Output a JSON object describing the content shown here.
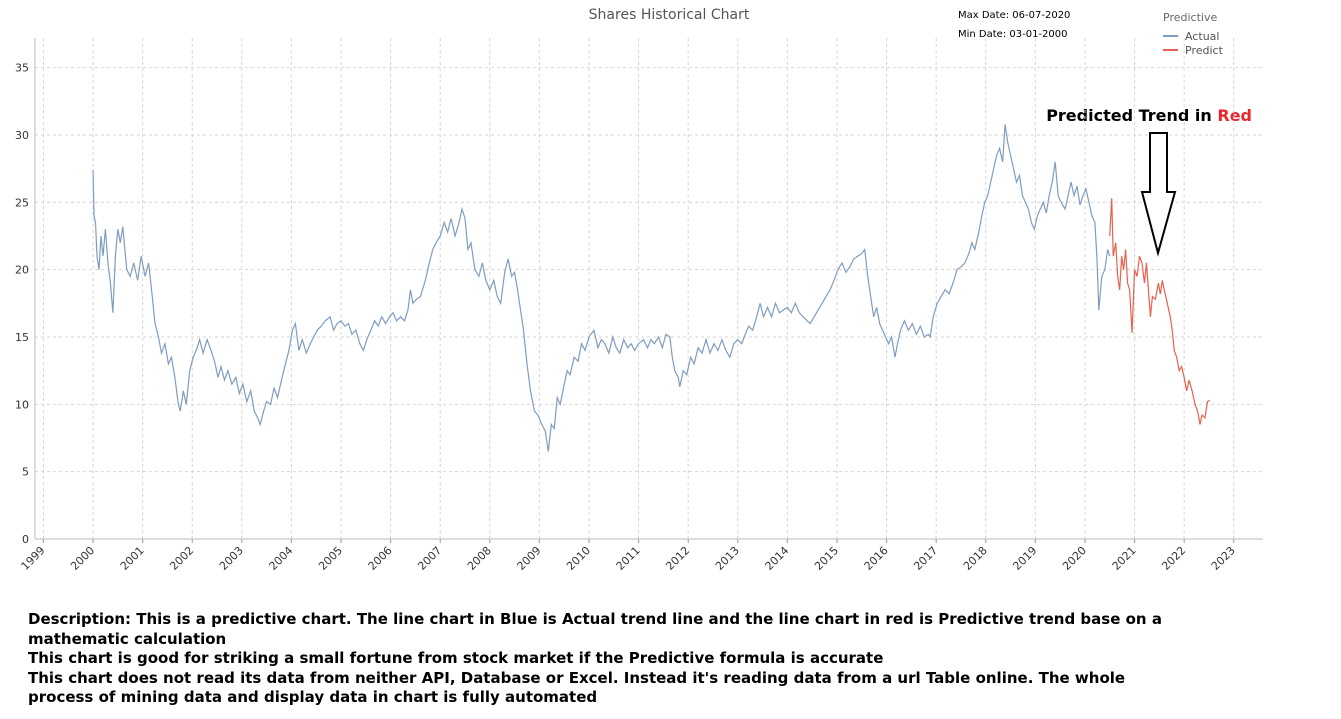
{
  "chart_data": {
    "type": "line",
    "title": "Shares Historical Chart",
    "max_date": "Max Date: 06-07-2020",
    "min_date": "Min Date: 03-01-2000",
    "legend_title": "Predictive",
    "annotation": {
      "text": "Predicted Trend in",
      "highlight": "Red"
    },
    "xlim": [
      1998.83,
      2023.59
    ],
    "xticks": [
      1999,
      2000,
      2001,
      2002,
      2003,
      2004,
      2005,
      2006,
      2007,
      2008,
      2009,
      2010,
      2011,
      2012,
      2013,
      2014,
      2015,
      2016,
      2017,
      2018,
      2019,
      2020,
      2021,
      2022,
      2023
    ],
    "ylim": [
      0,
      37.2
    ],
    "yticks": [
      0,
      5,
      10,
      15,
      20,
      25,
      30,
      35
    ],
    "grid": true,
    "series": [
      {
        "name": "Actual",
        "color": "#7f9dbf",
        "x": [
          2000.0,
          2000.02,
          2000.05,
          2000.08,
          2000.12,
          2000.16,
          2000.2,
          2000.25,
          2000.3,
          2000.35,
          2000.4,
          2000.45,
          2000.5,
          2000.55,
          2000.6,
          2000.68,
          2000.75,
          2000.82,
          2000.9,
          2000.97,
          2001.05,
          2001.12,
          2001.18,
          2001.25,
          2001.32,
          2001.38,
          2001.45,
          2001.52,
          2001.58,
          2001.65,
          2001.72,
          2001.76,
          2001.82,
          2001.88,
          2001.95,
          2002.02,
          2002.1,
          2002.15,
          2002.22,
          2002.3,
          2002.38,
          2002.45,
          2002.52,
          2002.58,
          2002.65,
          2002.72,
          2002.8,
          2002.88,
          2002.95,
          2003.02,
          2003.1,
          2003.18,
          2003.25,
          2003.32,
          2003.37,
          2003.44,
          2003.5,
          2003.58,
          2003.65,
          2003.72,
          2003.8,
          2003.88,
          2003.95,
          2004.02,
          2004.08,
          2004.15,
          2004.22,
          2004.3,
          2004.38,
          2004.45,
          2004.52,
          2004.6,
          2004.68,
          2004.78,
          2004.85,
          2004.92,
          2005.0,
          2005.08,
          2005.15,
          2005.22,
          2005.3,
          2005.38,
          2005.45,
          2005.52,
          2005.6,
          2005.68,
          2005.75,
          2005.82,
          2005.9,
          2005.98,
          2006.05,
          2006.12,
          2006.2,
          2006.28,
          2006.35,
          2006.4,
          2006.45,
          2006.52,
          2006.6,
          2006.7,
          2006.78,
          2006.85,
          2006.92,
          2007.0,
          2007.08,
          2007.15,
          2007.22,
          2007.3,
          2007.38,
          2007.44,
          2007.5,
          2007.56,
          2007.62,
          2007.7,
          2007.78,
          2007.85,
          2007.92,
          2008.0,
          2008.08,
          2008.15,
          2008.22,
          2008.3,
          2008.37,
          2008.44,
          2008.5,
          2008.56,
          2008.62,
          2008.68,
          2008.75,
          2008.82,
          2008.9,
          2008.97,
          2009.05,
          2009.12,
          2009.18,
          2009.24,
          2009.3,
          2009.36,
          2009.42,
          2009.5,
          2009.56,
          2009.62,
          2009.7,
          2009.78,
          2009.85,
          2009.92,
          2010.0,
          2010.1,
          2010.18,
          2010.25,
          2010.32,
          2010.4,
          2010.48,
          2010.55,
          2010.62,
          2010.7,
          2010.78,
          2010.85,
          2010.92,
          2011.0,
          2011.1,
          2011.18,
          2011.25,
          2011.32,
          2011.4,
          2011.48,
          2011.55,
          2011.63,
          2011.68,
          2011.73,
          2011.8,
          2011.83,
          2011.9,
          2011.97,
          2012.05,
          2012.12,
          2012.2,
          2012.28,
          2012.36,
          2012.44,
          2012.52,
          2012.6,
          2012.68,
          2012.76,
          2012.84,
          2012.92,
          2013.0,
          2013.08,
          2013.15,
          2013.22,
          2013.3,
          2013.38,
          2013.45,
          2013.52,
          2013.6,
          2013.68,
          2013.76,
          2013.84,
          2013.92,
          2014.0,
          2014.08,
          2014.16,
          2014.24,
          2014.32,
          2014.4,
          2014.46,
          2014.54,
          2014.62,
          2014.7,
          2014.78,
          2014.86,
          2014.94,
          2015.02,
          2015.1,
          2015.18,
          2015.26,
          2015.34,
          2015.42,
          2015.5,
          2015.56,
          2015.62,
          2015.68,
          2015.74,
          2015.8,
          2015.86,
          2015.92,
          2015.98,
          2016.04,
          2016.1,
          2016.17,
          2016.22,
          2016.28,
          2016.36,
          2016.44,
          2016.52,
          2016.6,
          2016.68,
          2016.76,
          2016.84,
          2016.88,
          2016.94,
          2017.02,
          2017.1,
          2017.18,
          2017.26,
          2017.34,
          2017.42,
          2017.5,
          2017.58,
          2017.66,
          2017.72,
          2017.78,
          2017.86,
          2017.92,
          2017.98,
          2018.04,
          2018.1,
          2018.16,
          2018.22,
          2018.28,
          2018.34,
          2018.39,
          2018.44,
          2018.5,
          2018.56,
          2018.62,
          2018.68,
          2018.74,
          2018.8,
          2018.86,
          2018.92,
          2018.98,
          2019.04,
          2019.1,
          2019.16,
          2019.22,
          2019.28,
          2019.34,
          2019.4,
          2019.46,
          2019.52,
          2019.6,
          2019.66,
          2019.72,
          2019.78,
          2019.84,
          2019.9,
          2019.96,
          2020.02,
          2020.08,
          2020.14,
          2020.2,
          2020.24,
          2020.28,
          2020.34,
          2020.4,
          2020.46,
          2020.5
        ],
        "values": [
          27.4,
          24,
          23.5,
          21,
          20,
          22.5,
          21,
          23,
          20.5,
          19,
          16.8,
          21,
          23,
          22,
          23.2,
          20,
          19.5,
          20.5,
          19.2,
          21,
          19.5,
          20.5,
          18.5,
          16,
          15,
          13.8,
          14.5,
          13,
          13.5,
          12,
          10,
          9.5,
          11,
          10,
          12.5,
          13.5,
          14.2,
          14.8,
          13.8,
          14.8,
          14,
          13.2,
          12,
          12.8,
          11.8,
          12.5,
          11.5,
          12,
          10.8,
          11.5,
          10.2,
          11,
          9.5,
          9,
          8.5,
          9.5,
          10.2,
          10,
          11.2,
          10.5,
          11.8,
          13,
          14,
          15.5,
          16,
          14,
          14.8,
          13.8,
          14.5,
          15,
          15.5,
          15.8,
          16.2,
          16.5,
          15.5,
          16,
          16.2,
          15.8,
          16,
          15.2,
          15.5,
          14.5,
          14,
          14.8,
          15.5,
          16.2,
          15.8,
          16.5,
          16,
          16.5,
          16.8,
          16.2,
          16.5,
          16.2,
          17,
          18.5,
          17.5,
          17.8,
          18,
          19.2,
          20.5,
          21.5,
          22,
          22.5,
          23.5,
          22.8,
          23.8,
          22.5,
          23.5,
          24.5,
          23.8,
          21.5,
          22,
          20,
          19.5,
          20.5,
          19.2,
          18.5,
          19.2,
          18,
          17.5,
          19.8,
          20.8,
          19.5,
          19.8,
          18.5,
          17,
          15.5,
          13,
          11,
          9.5,
          9.2,
          8.5,
          8,
          6.5,
          8.5,
          8.2,
          10.5,
          10,
          11.5,
          12.5,
          12.2,
          13.5,
          13.2,
          14.5,
          14,
          15,
          15.5,
          14.2,
          14.8,
          14.5,
          13.8,
          15,
          14.2,
          13.8,
          14.8,
          14.2,
          14.5,
          14,
          14.5,
          14.8,
          14.2,
          14.8,
          14.5,
          15,
          14.2,
          15.2,
          15,
          13.5,
          12.5,
          12,
          11.3,
          12.5,
          12.2,
          13.5,
          13,
          14.2,
          13.8,
          14.8,
          13.8,
          14.5,
          14,
          14.8,
          14,
          13.5,
          14.5,
          14.8,
          14.5,
          15.2,
          15.8,
          15.5,
          16.5,
          17.5,
          16.5,
          17.2,
          16.5,
          17.5,
          16.8,
          17,
          17.2,
          16.8,
          17.5,
          16.8,
          16.5,
          16.2,
          16,
          16.5,
          17,
          17.5,
          18,
          18.5,
          19.2,
          20,
          20.5,
          19.8,
          20.2,
          20.8,
          21,
          21.2,
          21.5,
          19.5,
          18,
          16.5,
          17.2,
          16,
          15.5,
          15,
          14.5,
          15,
          13.5,
          14.5,
          15.5,
          16.2,
          15.5,
          16,
          15.2,
          15.8,
          15,
          15.2,
          15,
          16.5,
          17.5,
          18,
          18.5,
          18.2,
          19,
          20,
          20.2,
          20.5,
          21.2,
          22,
          21.5,
          22.8,
          24,
          25,
          25.5,
          26.5,
          27.5,
          28.5,
          29,
          28,
          30.8,
          29.5,
          28.5,
          27.5,
          26.5,
          27,
          25.5,
          25,
          24.5,
          23.5,
          23,
          24,
          24.5,
          25,
          24.2,
          25.5,
          26.5,
          28,
          25.5,
          25,
          24.5,
          25.5,
          26.5,
          25.5,
          26.2,
          24.8,
          25.5,
          26,
          25,
          24,
          23.5,
          21,
          17,
          19.5,
          20,
          21.5,
          21
        ]
      },
      {
        "name": "Predict",
        "color": "#e8604f",
        "x": [
          2020.5,
          2020.54,
          2020.57,
          2020.62,
          2020.66,
          2020.7,
          2020.74,
          2020.78,
          2020.82,
          2020.86,
          2020.9,
          2020.95,
          2021.0,
          2021.05,
          2021.1,
          2021.15,
          2021.2,
          2021.24,
          2021.28,
          2021.32,
          2021.36,
          2021.42,
          2021.48,
          2021.52,
          2021.56,
          2021.6,
          2021.66,
          2021.72,
          2021.76,
          2021.8,
          2021.85,
          2021.9,
          2021.95,
          2022.0,
          2022.05,
          2022.1,
          2022.16,
          2022.22,
          2022.27,
          2022.32,
          2022.36,
          2022.42,
          2022.47,
          2022.52
        ],
        "values": [
          22.5,
          25.3,
          21,
          22,
          19.5,
          18.5,
          21,
          20,
          21.5,
          19,
          18.5,
          15.3,
          20,
          19.5,
          21,
          20.5,
          19,
          20.5,
          18.5,
          16.5,
          18,
          17.8,
          19,
          18.2,
          19.2,
          18.5,
          17.5,
          16.5,
          15.5,
          14,
          13.5,
          12.5,
          12.8,
          12,
          11,
          11.8,
          11,
          10,
          9.5,
          8.5,
          9.2,
          9,
          10.2,
          10.3
        ]
      }
    ]
  },
  "description": [
    "Description: This is a predictive chart. The line chart in Blue is Actual trend line and the line chart in red is Predictive trend base on a mathematic calculation",
    "This chart is good for striking a small fortune from stock market if the Predictive formula is accurate",
    "This chart does not read its data from neither API, Database or Excel. Instead it's reading data from a url Table online. The whole process of mining data and display data in chart is fully automated"
  ]
}
